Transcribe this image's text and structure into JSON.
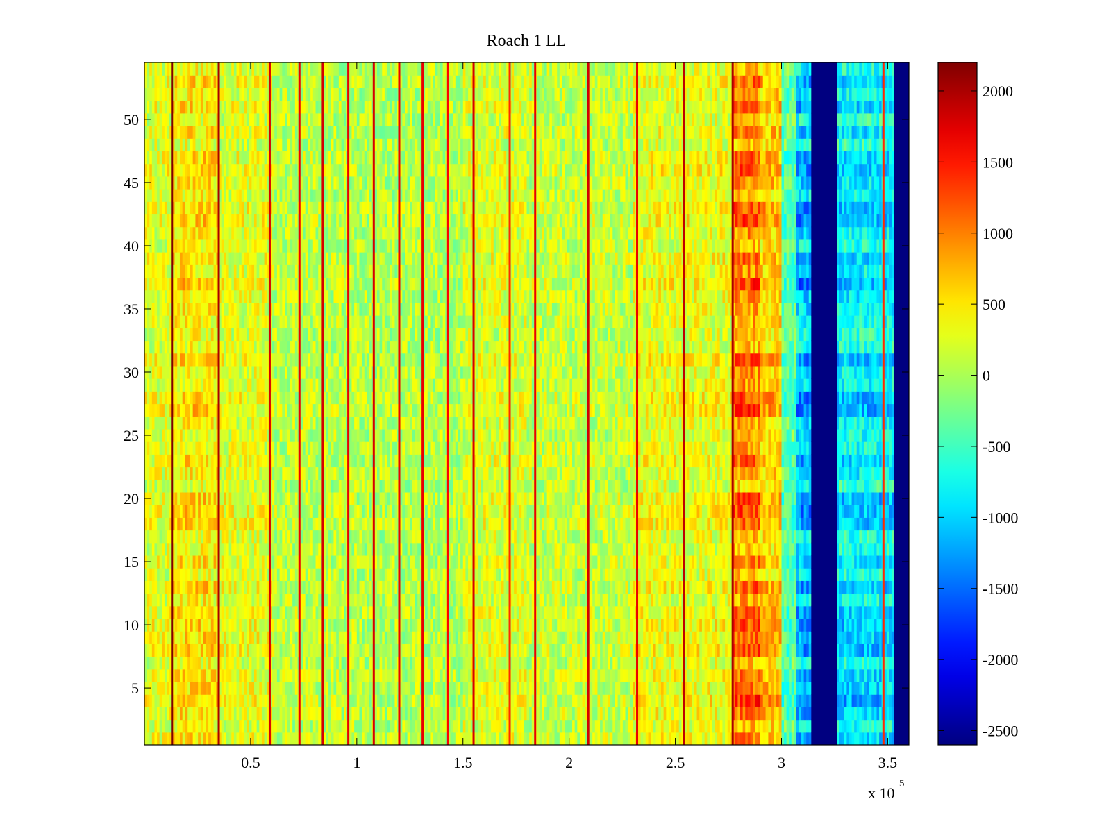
{
  "chart_data": {
    "type": "heatmap",
    "title": "Roach 1 LL",
    "xlabel": "",
    "ylabel": "",
    "x_scale_label": "x 10",
    "x_scale_exponent": "5",
    "xlim": [
      0,
      3.6
    ],
    "ylim": [
      0.5,
      54.5
    ],
    "x_ticks": [
      0.5,
      1,
      1.5,
      2,
      2.5,
      3,
      3.5
    ],
    "x_tick_labels": [
      "0.5",
      "1",
      "1.5",
      "2",
      "2.5",
      "3",
      "3.5"
    ],
    "y_ticks": [
      5,
      10,
      15,
      20,
      25,
      30,
      35,
      40,
      45,
      50
    ],
    "y_tick_labels": [
      "5",
      "10",
      "15",
      "20",
      "25",
      "30",
      "35",
      "40",
      "45",
      "50"
    ],
    "rows": 54,
    "colorbar": {
      "colormap": "jet",
      "range": [
        -2600,
        2200
      ],
      "ticks": [
        2000,
        1500,
        1000,
        500,
        0,
        -500,
        -1000,
        -1500,
        -2000,
        -2500
      ],
      "tick_labels": [
        "2000",
        "1500",
        "1000",
        "500",
        "0",
        "-500",
        "-1000",
        "-1500",
        "-2000",
        "-2500"
      ]
    },
    "background_level": 150,
    "column_bands": [
      {
        "x_start": 0.0,
        "x_end": 0.13,
        "level": 250
      },
      {
        "x_start": 0.13,
        "x_end": 0.35,
        "level": 450
      },
      {
        "x_start": 0.35,
        "x_end": 0.6,
        "level": 250
      },
      {
        "x_start": 0.6,
        "x_end": 1.0,
        "level": 80
      },
      {
        "x_start": 1.0,
        "x_end": 1.5,
        "level": 40
      },
      {
        "x_start": 1.5,
        "x_end": 1.8,
        "level": 220
      },
      {
        "x_start": 1.8,
        "x_end": 2.3,
        "level": 120
      },
      {
        "x_start": 2.3,
        "x_end": 2.77,
        "level": 300
      },
      {
        "x_start": 2.77,
        "x_end": 2.9,
        "level": 900
      },
      {
        "x_start": 2.9,
        "x_end": 3.0,
        "level": 600
      },
      {
        "x_start": 3.0,
        "x_end": 3.07,
        "level": -350
      },
      {
        "x_start": 3.07,
        "x_end": 3.14,
        "level": -1000
      },
      {
        "x_start": 3.14,
        "x_end": 3.26,
        "level": -2600
      },
      {
        "x_start": 3.26,
        "x_end": 3.53,
        "level": -800
      },
      {
        "x_start": 3.53,
        "x_end": 3.6,
        "level": -2600
      }
    ],
    "vertical_lines": [
      {
        "x": 0.13,
        "level": 2200
      },
      {
        "x": 0.35,
        "level": 2000
      },
      {
        "x": 0.59,
        "level": 1800
      },
      {
        "x": 0.73,
        "level": 1700
      },
      {
        "x": 0.84,
        "level": 1800
      },
      {
        "x": 0.96,
        "level": 1700
      },
      {
        "x": 1.08,
        "level": 1800
      },
      {
        "x": 1.2,
        "level": 1700
      },
      {
        "x": 1.31,
        "level": 1700
      },
      {
        "x": 1.43,
        "level": 1600
      },
      {
        "x": 1.55,
        "level": 1800
      },
      {
        "x": 1.72,
        "level": 1400
      },
      {
        "x": 1.84,
        "level": 1700
      },
      {
        "x": 2.09,
        "level": 1800
      },
      {
        "x": 2.32,
        "level": 1700
      },
      {
        "x": 2.54,
        "level": 1900
      },
      {
        "x": 2.77,
        "level": 2000
      },
      {
        "x": 3.48,
        "level": 1400
      }
    ]
  }
}
